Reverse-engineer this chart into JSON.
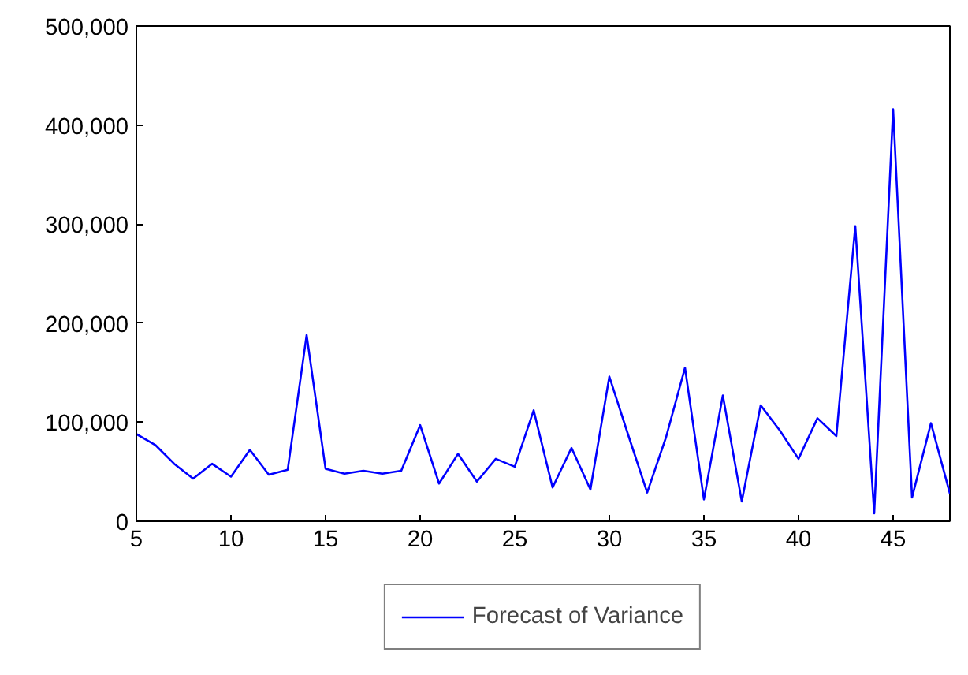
{
  "chart_data": {
    "type": "line",
    "x": [
      5,
      6,
      7,
      8,
      9,
      10,
      11,
      12,
      13,
      14,
      15,
      16,
      17,
      18,
      19,
      20,
      21,
      22,
      23,
      24,
      25,
      26,
      27,
      28,
      29,
      30,
      31,
      32,
      33,
      34,
      35,
      36,
      37,
      38,
      39,
      40,
      41,
      42,
      43,
      44,
      45,
      46,
      47,
      48
    ],
    "series": [
      {
        "name": "Forecast of Variance",
        "color": "#0000ff",
        "values": [
          88000,
          77000,
          58000,
          43000,
          58000,
          45000,
          72000,
          47000,
          52000,
          188000,
          53000,
          48000,
          51000,
          48000,
          51000,
          97000,
          38000,
          68000,
          40000,
          63000,
          55000,
          112000,
          34000,
          74000,
          32000,
          146000,
          87000,
          29000,
          85000,
          155000,
          22000,
          127000,
          20000,
          117000,
          92000,
          63000,
          104000,
          86000,
          298000,
          8000,
          416000,
          24000,
          99000,
          28000
        ]
      }
    ],
    "xlim": [
      5,
      48
    ],
    "xticks": [
      5,
      10,
      15,
      20,
      25,
      30,
      35,
      40,
      45
    ],
    "ylim": [
      0,
      500000
    ],
    "yticks": [
      {
        "value": 0,
        "label": "0"
      },
      {
        "value": 100000,
        "label": "100,000"
      },
      {
        "value": 200000,
        "label": "200,000"
      },
      {
        "value": 300000,
        "label": "300,000"
      },
      {
        "value": 400000,
        "label": "400,000"
      },
      {
        "value": 500000,
        "label": "500,000"
      }
    ],
    "grid": false,
    "legend": "bottom",
    "marker": "none",
    "line_style": "solid"
  }
}
